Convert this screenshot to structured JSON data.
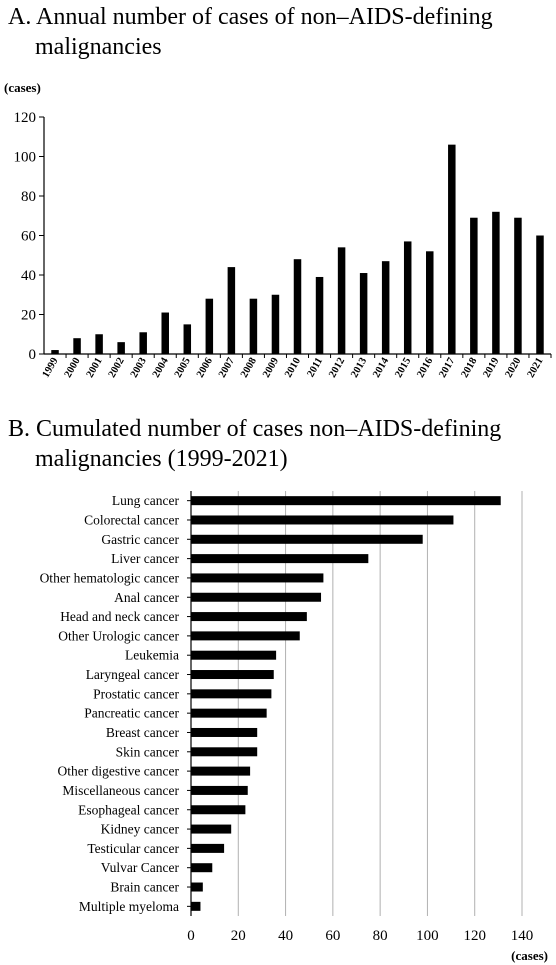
{
  "chart_data": [
    {
      "type": "bar",
      "title_letter": "A.",
      "title_line1": "Annual number of cases of non–AIDS-defining",
      "title_line2": "malignancies",
      "ylabel": "(cases)",
      "ylim": [
        0,
        120
      ],
      "yticks": [
        0,
        20,
        40,
        60,
        80,
        100,
        120
      ],
      "categories": [
        "1999",
        "2000",
        "2001",
        "2002",
        "2003",
        "2004",
        "2005",
        "2006",
        "2007",
        "2008",
        "2009",
        "2010",
        "2011",
        "2012",
        "2013",
        "2014",
        "2015",
        "2016",
        "2017",
        "2018",
        "2019",
        "2020",
        "2021"
      ],
      "values": [
        2,
        8,
        10,
        6,
        11,
        21,
        15,
        28,
        44,
        28,
        30,
        48,
        39,
        54,
        41,
        47,
        57,
        52,
        106,
        69,
        72,
        69,
        60
      ],
      "bar_color": "#000000",
      "grid": false
    },
    {
      "type": "bar",
      "orientation": "horizontal",
      "title_letter": "B.",
      "title_line1": "Cumulated number of cases non–AIDS-defining",
      "title_line2": "malignancies (1999-2021)",
      "xlabel": "(cases)",
      "xlim": [
        0,
        140
      ],
      "xticks": [
        0,
        20,
        40,
        60,
        80,
        100,
        120,
        140
      ],
      "categories": [
        "Lung cancer",
        "Colorectal cancer",
        "Gastric cancer",
        "Liver cancer",
        "Other hematologic cancer",
        "Anal cancer",
        "Head and neck cancer",
        "Other Urologic cancer",
        "Leukemia",
        "Laryngeal cancer",
        "Prostatic cancer",
        "Pancreatic cancer",
        "Breast cancer",
        "Skin cancer",
        "Other digestive cancer",
        "Miscellaneous cancer",
        "Esophageal cancer",
        "Kidney cancer",
        "Testicular cancer",
        "Vulvar Cancer",
        "Brain cancer",
        "Multiple myeloma"
      ],
      "values": [
        131,
        111,
        98,
        75,
        56,
        55,
        49,
        46,
        36,
        35,
        34,
        32,
        28,
        28,
        25,
        24,
        23,
        17,
        14,
        9,
        5,
        4
      ],
      "bar_color": "#000000",
      "grid": true,
      "grid_color": "#b0b0b0"
    }
  ]
}
